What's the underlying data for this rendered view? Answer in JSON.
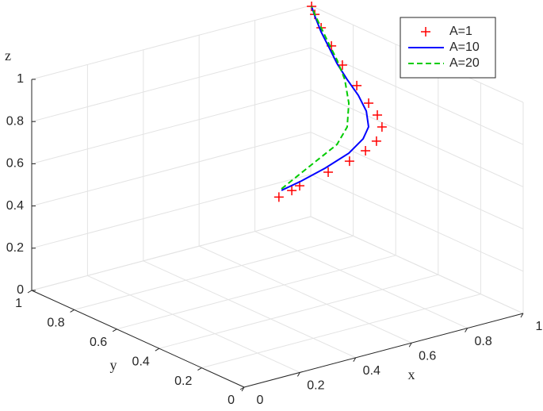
{
  "chart_data": {
    "type": "line3d",
    "xlabel": "x",
    "ylabel": "y",
    "zlabel": "z",
    "xlim": [
      0,
      1
    ],
    "ylim": [
      0,
      1
    ],
    "zlim": [
      0,
      1
    ],
    "xticks": [
      0,
      0.2,
      0.4,
      0.6,
      0.8,
      1
    ],
    "yticks": [
      0,
      0.2,
      0.4,
      0.6,
      0.8,
      1
    ],
    "zticks": [
      0,
      0.2,
      0.4,
      0.6,
      0.8,
      1
    ],
    "grid": true,
    "legend": "upper right",
    "series": [
      {
        "name": "A=1",
        "color": "#ff0000",
        "marker": "+",
        "linestyle": "none",
        "x": [
          0.353,
          0.422,
          0.473,
          0.621,
          0.743,
          0.846,
          0.931,
          0.95,
          0.96,
          0.97,
          0.98,
          0.99,
          0.995,
          1,
          1,
          1
        ],
        "y": [
          0.3,
          0.33,
          0.36,
          0.42,
          0.48,
          0.54,
          0.6,
          0.599,
          0.634,
          0.688,
          0.757,
          0.838,
          0.896,
          0.951,
          0.981,
          0.996
        ],
        "z": [
          0.64,
          0.633,
          0.624,
          0.609,
          0.591,
          0.577,
          0.565,
          0.626,
          0.663,
          0.691,
          0.739,
          0.796,
          0.858,
          0.917,
          0.967,
          0.998
        ]
      },
      {
        "name": "A=10",
        "color": "#0000ff",
        "marker": "none",
        "linestyle": "solid",
        "x": [
          0.35,
          0.45,
          0.58,
          0.72,
          0.82,
          0.87,
          0.9,
          0.93,
          0.95,
          0.97,
          0.985,
          0.995,
          1,
          1
        ],
        "y": [
          0.284,
          0.322,
          0.381,
          0.453,
          0.517,
          0.557,
          0.607,
          0.684,
          0.763,
          0.837,
          0.894,
          0.945,
          0.981,
          0.996
        ],
        "z": [
          0.68,
          0.672,
          0.66,
          0.649,
          0.653,
          0.674,
          0.715,
          0.744,
          0.776,
          0.811,
          0.855,
          0.903,
          0.96,
          0.998
        ]
      },
      {
        "name": "A=20",
        "color": "#00cc00",
        "marker": "none",
        "linestyle": "dashed",
        "x": [
          0.35,
          0.43,
          0.55,
          0.66,
          0.74,
          0.8,
          0.86,
          0.91,
          0.95,
          1,
          1,
          1
        ],
        "y": [
          0.284,
          0.315,
          0.379,
          0.43,
          0.487,
          0.558,
          0.656,
          0.759,
          0.849,
          0.951,
          0.981,
          0.996
        ],
        "z": [
          0.687,
          0.705,
          0.709,
          0.722,
          0.751,
          0.81,
          0.857,
          0.886,
          0.906,
          0.917,
          0.967,
          0.998
        ]
      }
    ]
  }
}
